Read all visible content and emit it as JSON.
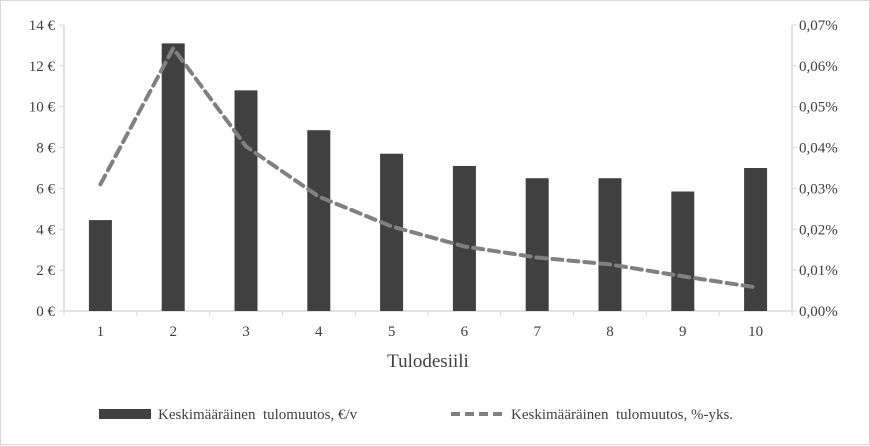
{
  "chart_data": {
    "type": "bar",
    "title": "",
    "xlabel": "Tulodesiili",
    "ylabel": "",
    "categories": [
      "1",
      "2",
      "3",
      "4",
      "5",
      "6",
      "7",
      "8",
      "9",
      "10"
    ],
    "ylim": [
      0,
      14
    ],
    "y2lim": [
      0,
      0.07
    ],
    "yticks": [
      "0 €",
      "2 €",
      "4 €",
      "6 €",
      "8 €",
      "10 €",
      "12 €",
      "14 €"
    ],
    "y2ticks": [
      "0,00%",
      "0,01%",
      "0,02%",
      "0,03%",
      "0,04%",
      "0,05%",
      "0,06%",
      "0,07%"
    ],
    "grid": false,
    "legend_position": "bottom",
    "series": [
      {
        "name": "Keskimääräinen  tulomuutos, €/v",
        "type": "bar",
        "axis": "left",
        "color": "#404040",
        "values": [
          4.45,
          13.1,
          10.8,
          8.85,
          7.7,
          7.1,
          6.5,
          6.5,
          5.85,
          7.0
        ]
      },
      {
        "name": "Keskimääräinen  tulomuutos, %-yks.",
        "type": "line",
        "axis": "right",
        "color": "#808080",
        "dash": "dashed",
        "values": [
          0.031,
          0.0643,
          0.0403,
          0.028,
          0.0207,
          0.0158,
          0.0131,
          0.0114,
          0.0085,
          0.0058
        ]
      }
    ]
  }
}
